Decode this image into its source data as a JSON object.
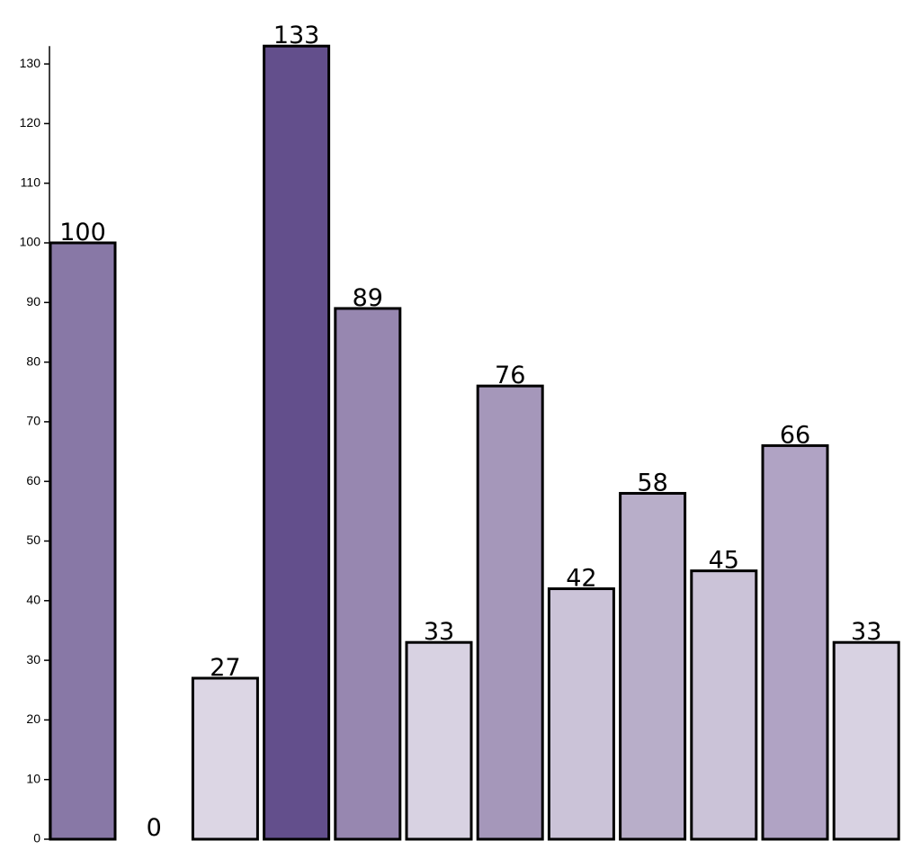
{
  "chart_data": {
    "type": "bar",
    "title": "",
    "xlabel": "",
    "ylabel": "",
    "ylim": [
      0,
      133
    ],
    "yticks": [
      0,
      10,
      20,
      30,
      40,
      50,
      60,
      70,
      80,
      90,
      100,
      110,
      120,
      130
    ],
    "grid": false,
    "values": [
      100,
      0,
      27,
      133,
      89,
      33,
      76,
      42,
      58,
      45,
      66,
      33
    ],
    "colors": [
      "#8878a6",
      "#8878a6",
      "#dcd6e4",
      "#634f8c",
      "#9787b0",
      "#d8d2e2",
      "#a597ba",
      "#cbc3d8",
      "#b8aec9",
      "#cbc3d8",
      "#b0a3c4",
      "#d8d2e2"
    ]
  }
}
